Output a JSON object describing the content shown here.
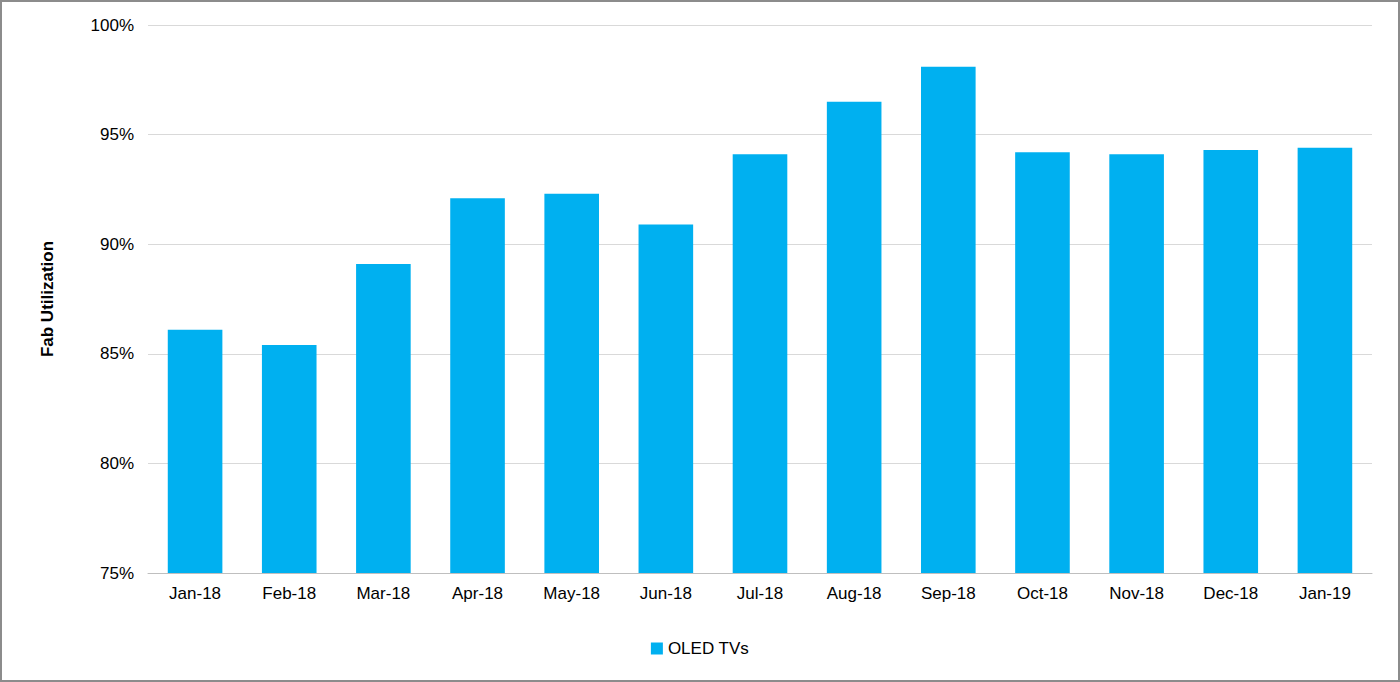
{
  "chart_data": {
    "type": "bar",
    "y_label": "Fab Utilization",
    "categories": [
      "Jan-18",
      "Feb-18",
      "Mar-18",
      "Apr-18",
      "May-18",
      "Jun-18",
      "Jul-18",
      "Aug-18",
      "Sep-18",
      "Oct-18",
      "Nov-18",
      "Dec-18",
      "Jan-19"
    ],
    "series": [
      {
        "name": "OLED TVs",
        "color": "#00b0f0",
        "values": [
          86.1,
          85.4,
          89.1,
          92.1,
          92.3,
          90.9,
          94.1,
          96.5,
          98.1,
          94.2,
          94.1,
          94.3,
          94.4
        ]
      }
    ],
    "ylim": [
      75,
      100
    ],
    "yticks": [
      {
        "value": 75,
        "label": "75%"
      },
      {
        "value": 80,
        "label": "80%"
      },
      {
        "value": 85,
        "label": "85%"
      },
      {
        "value": 90,
        "label": "90%"
      },
      {
        "value": 95,
        "label": "95%"
      },
      {
        "value": 100,
        "label": "100%"
      }
    ],
    "grid": true,
    "legend": "bottom"
  }
}
